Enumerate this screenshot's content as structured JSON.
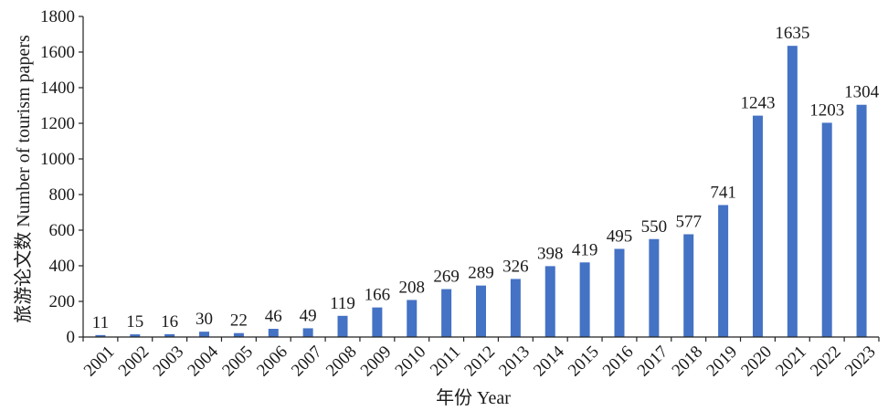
{
  "chart_data": {
    "type": "bar",
    "title": "",
    "xlabel": "年份 Year",
    "ylabel": "旅游论文数 Number of tourism papers",
    "ylim": [
      0,
      1800
    ],
    "yticks": [
      0,
      200,
      400,
      600,
      800,
      1000,
      1200,
      1400,
      1600,
      1800
    ],
    "categories": [
      "2001",
      "2002",
      "2003",
      "2004",
      "2005",
      "2006",
      "2007",
      "2008",
      "2009",
      "2010",
      "2011",
      "2012",
      "2013",
      "2014",
      "2015",
      "2016",
      "2017",
      "2018",
      "2019",
      "2020",
      "2021",
      "2022",
      "2023"
    ],
    "values": [
      11,
      15,
      16,
      30,
      22,
      46,
      49,
      119,
      166,
      208,
      269,
      289,
      326,
      398,
      419,
      495,
      550,
      577,
      741,
      1243,
      1635,
      1203,
      1304
    ],
    "data_labels_shown": true,
    "grid": false,
    "legend": "none",
    "bar_color": "#4472C4"
  }
}
